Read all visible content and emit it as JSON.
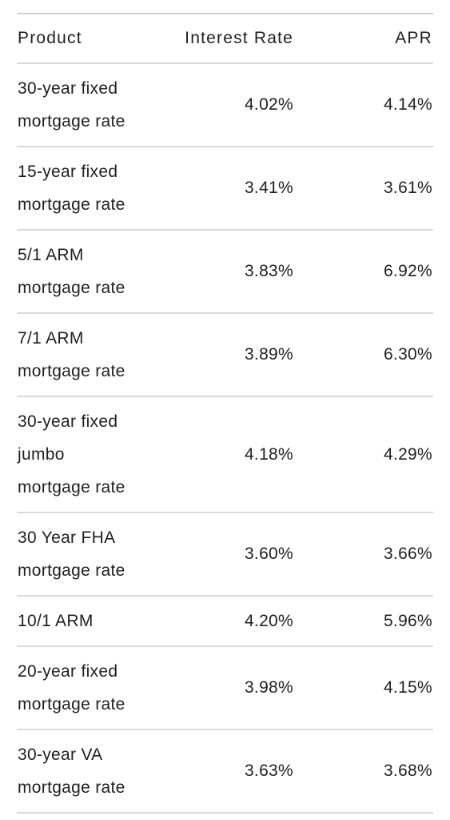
{
  "table": {
    "headers": {
      "product": "Product",
      "interest_rate": "Interest Rate",
      "apr": "APR"
    },
    "rows": [
      {
        "product": "30-year fixed mortgage rate",
        "interest_rate": "4.02%",
        "apr": "4.14%"
      },
      {
        "product": "15-year fixed mortgage rate",
        "interest_rate": "3.41%",
        "apr": "3.61%"
      },
      {
        "product": "5/1 ARM mortgage rate",
        "interest_rate": "3.83%",
        "apr": "6.92%"
      },
      {
        "product": "7/1 ARM mortgage rate",
        "interest_rate": "3.89%",
        "apr": "6.30%"
      },
      {
        "product": "30-year fixed jumbo mortgage rate",
        "interest_rate": "4.18%",
        "apr": "4.29%"
      },
      {
        "product": "30 Year FHA mortgage rate",
        "interest_rate": "3.60%",
        "apr": "3.66%"
      },
      {
        "product": "10/1 ARM",
        "interest_rate": "4.20%",
        "apr": "5.96%"
      },
      {
        "product": "20-year fixed mortgage rate",
        "interest_rate": "3.98%",
        "apr": "4.15%"
      },
      {
        "product": "30-year VA mortgage rate",
        "interest_rate": "3.63%",
        "apr": "3.68%"
      }
    ]
  }
}
